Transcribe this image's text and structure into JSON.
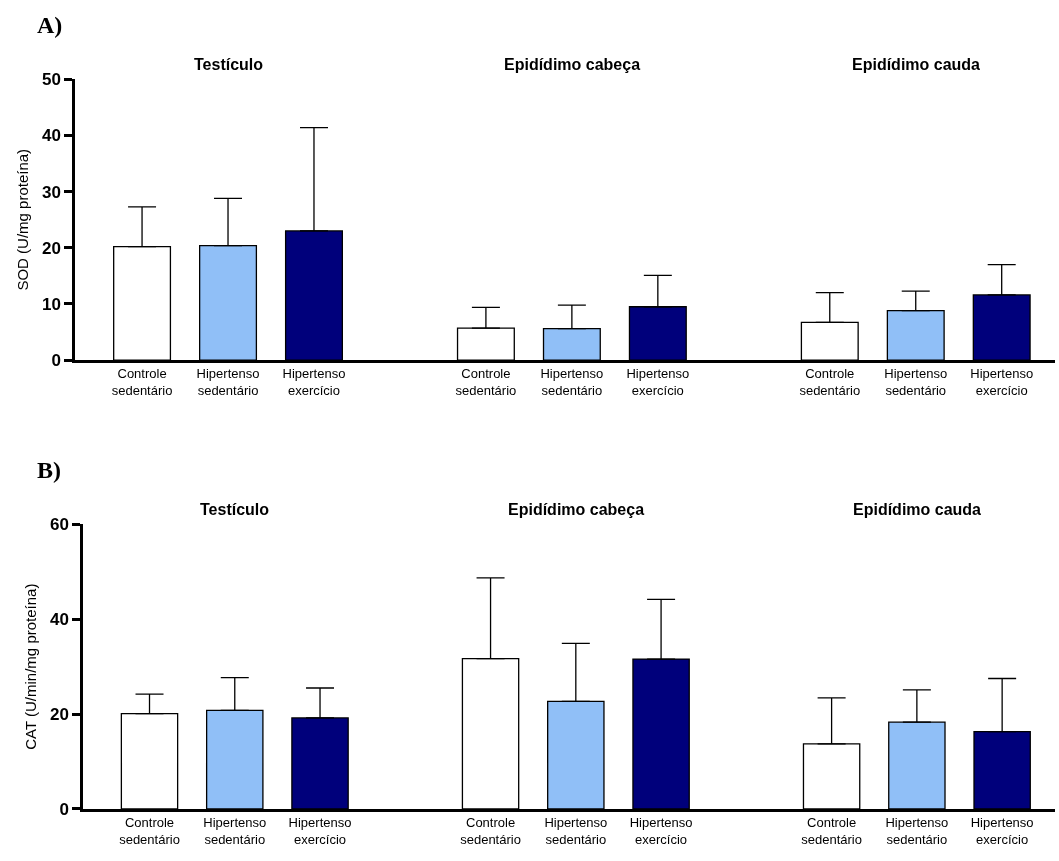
{
  "chart_data": [
    {
      "type": "bar",
      "title": "A)",
      "ylabel": "SOD (U/mg proteína)",
      "categories": [
        "Controle sedentário",
        "Hipertenso sedentário",
        "Hipertenso exercício",
        null,
        "Controle sedentário",
        "Hipertenso sedentário",
        "Hipertenso exercício",
        null,
        "Controle sedentário",
        "Hipertenso sedentário",
        "Hipertenso exercício"
      ],
      "values": [
        20.2,
        20.4,
        23.0,
        null,
        5.7,
        5.6,
        9.5,
        null,
        6.7,
        8.8,
        11.6
      ],
      "errors": [
        [
          20.2,
          27.3
        ],
        [
          20.4,
          28.8
        ],
        [
          23.0,
          41.4
        ],
        null,
        [
          5.7,
          9.4
        ],
        [
          5.6,
          9.8
        ],
        [
          9.5,
          15.1
        ],
        null,
        [
          6.7,
          12.0
        ],
        [
          8.8,
          12.3
        ],
        [
          11.6,
          17.0
        ]
      ],
      "colors": [
        "#ffffff",
        "#90bff7",
        "#00007b",
        null,
        "#ffffff",
        "#90bff7",
        "#00007b",
        null,
        "#ffffff",
        "#90bff7",
        "#00007b"
      ],
      "annotations": [
        "Testículo",
        "Epidídimo cabeça",
        "Epidídimo cauda"
      ],
      "ylim": [
        0,
        50
      ],
      "yticks": [
        0,
        10,
        20,
        30,
        40,
        50
      ]
    },
    {
      "type": "bar",
      "title": "B)",
      "ylabel": "CAT (U/min/mg proteína)",
      "categories": [
        "Controle sedentário",
        "Hipertenso sedentário",
        "Hipertenso exercício",
        null,
        "Controle sedentário",
        "Hipertenso sedentário",
        "Hipertenso exercício",
        null,
        "Controle sedentário",
        "Hipertenso sedentário",
        "Hipertenso exercício"
      ],
      "values": [
        20.1,
        20.8,
        19.2,
        null,
        31.7,
        22.7,
        31.6,
        null,
        13.7,
        18.3,
        16.3
      ],
      "errors": [
        [
          20.1,
          24.2
        ],
        [
          20.8,
          27.7
        ],
        [
          19.2,
          25.5
        ],
        null,
        [
          31.7,
          48.7
        ],
        [
          22.7,
          34.9
        ],
        [
          31.6,
          44.2
        ],
        null,
        [
          13.7,
          23.4
        ],
        [
          18.3,
          25.1
        ],
        [
          16.3,
          27.5
        ]
      ],
      "colors": [
        "#ffffff",
        "#90bff7",
        "#00007b",
        null,
        "#ffffff",
        "#90bff7",
        "#00007b",
        null,
        "#ffffff",
        "#90bff7",
        "#00007b"
      ],
      "annotations": [
        "Testículo",
        "Epidídimo cabeça",
        "Epidídimo cauda"
      ],
      "ylim": [
        0,
        60
      ],
      "yticks": [
        0,
        20,
        40,
        60
      ]
    }
  ]
}
